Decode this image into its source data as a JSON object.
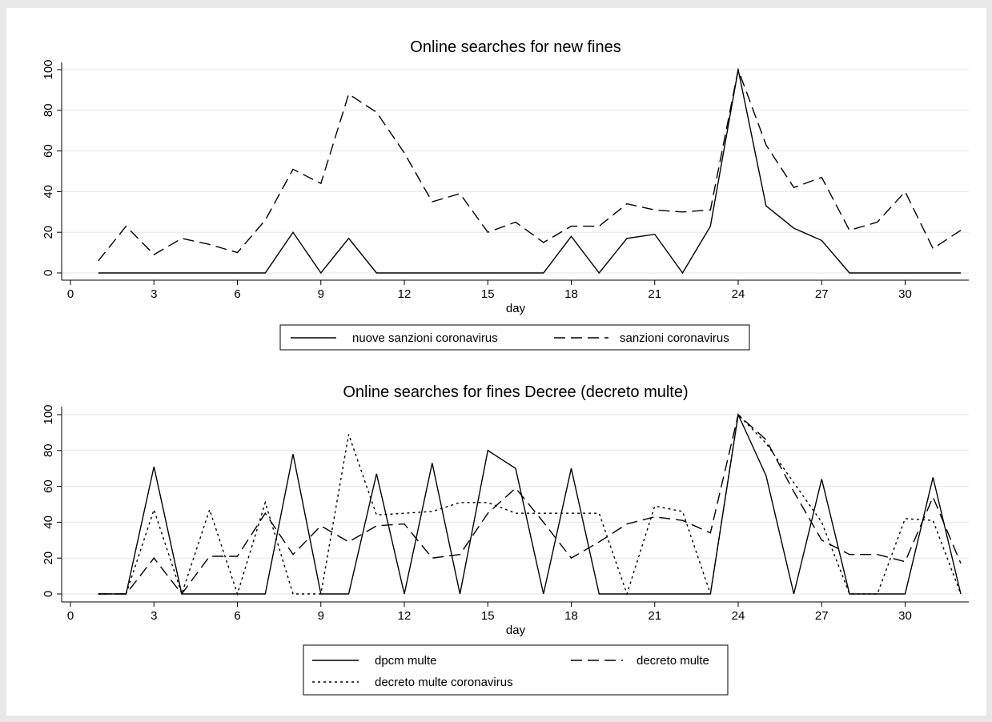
{
  "style": {
    "outer_bg": "#e8e8e8",
    "panel_bg": "#ffffff",
    "grid_color": "#e6e6e6",
    "line_color": "#000000"
  },
  "chart_data": [
    {
      "type": "line",
      "title": "Online searches for new fines",
      "xlabel": "day",
      "ylabel": "",
      "xlim": [
        0,
        32
      ],
      "ylim": [
        0,
        100
      ],
      "xticks": [
        0,
        3,
        6,
        9,
        12,
        15,
        18,
        21,
        24,
        27,
        30
      ],
      "yticks": [
        0,
        20,
        40,
        60,
        80,
        100
      ],
      "grid": true,
      "legend_position": "bottom",
      "x": [
        1,
        2,
        3,
        4,
        5,
        6,
        7,
        8,
        9,
        10,
        11,
        12,
        13,
        14,
        15,
        16,
        17,
        18,
        19,
        20,
        21,
        22,
        23,
        24,
        25,
        26,
        27,
        28,
        29,
        30,
        31,
        32
      ],
      "series": [
        {
          "name": "nuove sanzioni coronavirus",
          "dash": "solid",
          "values": [
            0,
            0,
            0,
            0,
            0,
            0,
            0,
            20,
            0,
            17,
            0,
            0,
            0,
            0,
            0,
            0,
            0,
            18,
            0,
            17,
            19,
            0,
            23,
            100,
            33,
            22,
            16,
            0,
            0,
            0,
            0,
            0
          ]
        },
        {
          "name": "sanzioni coronavirus",
          "dash": "longdash",
          "values": [
            6,
            23,
            9,
            17,
            14,
            10,
            26,
            51,
            44,
            88,
            79,
            59,
            35,
            39,
            20,
            25,
            15,
            23,
            23,
            34,
            31,
            30,
            31,
            100,
            63,
            42,
            47,
            21,
            25,
            40,
            12,
            21
          ]
        }
      ]
    },
    {
      "type": "line",
      "title": "Online searches for fines Decree (decreto multe)",
      "xlabel": "day",
      "ylabel": "",
      "xlim": [
        0,
        32
      ],
      "ylim": [
        0,
        100
      ],
      "xticks": [
        0,
        3,
        6,
        9,
        12,
        15,
        18,
        21,
        24,
        27,
        30
      ],
      "yticks": [
        0,
        20,
        40,
        60,
        80,
        100
      ],
      "grid": true,
      "legend_position": "bottom",
      "x": [
        1,
        2,
        3,
        4,
        5,
        6,
        7,
        8,
        9,
        10,
        11,
        12,
        13,
        14,
        15,
        16,
        17,
        18,
        19,
        20,
        21,
        22,
        23,
        24,
        25,
        26,
        27,
        28,
        29,
        30,
        31,
        32
      ],
      "series": [
        {
          "name": "dpcm multe",
          "dash": "solid",
          "values": [
            0,
            0,
            71,
            0,
            0,
            0,
            0,
            78,
            0,
            0,
            67,
            0,
            73,
            0,
            80,
            70,
            0,
            70,
            0,
            0,
            0,
            0,
            0,
            100,
            66,
            0,
            64,
            0,
            0,
            0,
            65,
            0
          ]
        },
        {
          "name": "decreto multe",
          "dash": "longdash",
          "values": [
            0,
            0,
            20,
            0,
            21,
            21,
            45,
            22,
            38,
            29,
            38,
            39,
            20,
            22,
            45,
            59,
            40,
            20,
            29,
            39,
            43,
            41,
            34,
            100,
            86,
            57,
            30,
            22,
            22,
            18,
            54,
            17
          ]
        },
        {
          "name": "decreto multe coronavirus",
          "dash": "shortdash",
          "values": [
            0,
            0,
            47,
            0,
            47,
            0,
            51,
            0,
            0,
            89,
            44,
            45,
            46,
            51,
            51,
            45,
            45,
            45,
            45,
            0,
            49,
            46,
            0,
            100,
            84,
            62,
            40,
            0,
            0,
            42,
            41,
            0
          ]
        }
      ]
    }
  ]
}
